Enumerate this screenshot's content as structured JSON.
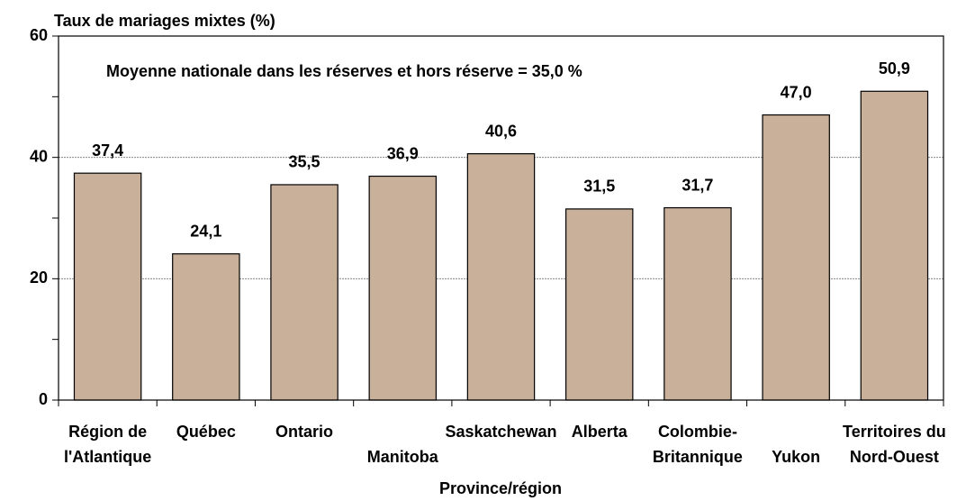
{
  "chart_data": {
    "type": "bar",
    "title": "Taux de mariages mixtes (%)",
    "annotation": "Moyenne nationale dans les réserves et hors réserve = 35,0 %",
    "x_label": "Province/région",
    "categories": [
      [
        "Région de",
        "l'Atlantique"
      ],
      [
        "Québec"
      ],
      [
        "Ontario"
      ],
      [
        "Manitoba"
      ],
      [
        "Saskatchewan"
      ],
      [
        "Alberta"
      ],
      [
        "Colombie-",
        "Britannique"
      ],
      [
        "Yukon"
      ],
      [
        "Territoires du",
        "Nord-Ouest"
      ]
    ],
    "values": [
      37.4,
      24.1,
      35.5,
      36.9,
      40.6,
      31.5,
      31.7,
      47.0,
      50.9
    ],
    "value_labels": [
      "37,4",
      "24,1",
      "35,5",
      "36,9",
      "40,6",
      "31,5",
      "31,7",
      "47,0",
      "50,9"
    ],
    "color": "#c8b09a",
    "ylim": [
      0,
      60
    ],
    "yticks": [
      0,
      20,
      40,
      60
    ],
    "yticks_minor": [
      10,
      30,
      50
    ],
    "grid": true
  }
}
